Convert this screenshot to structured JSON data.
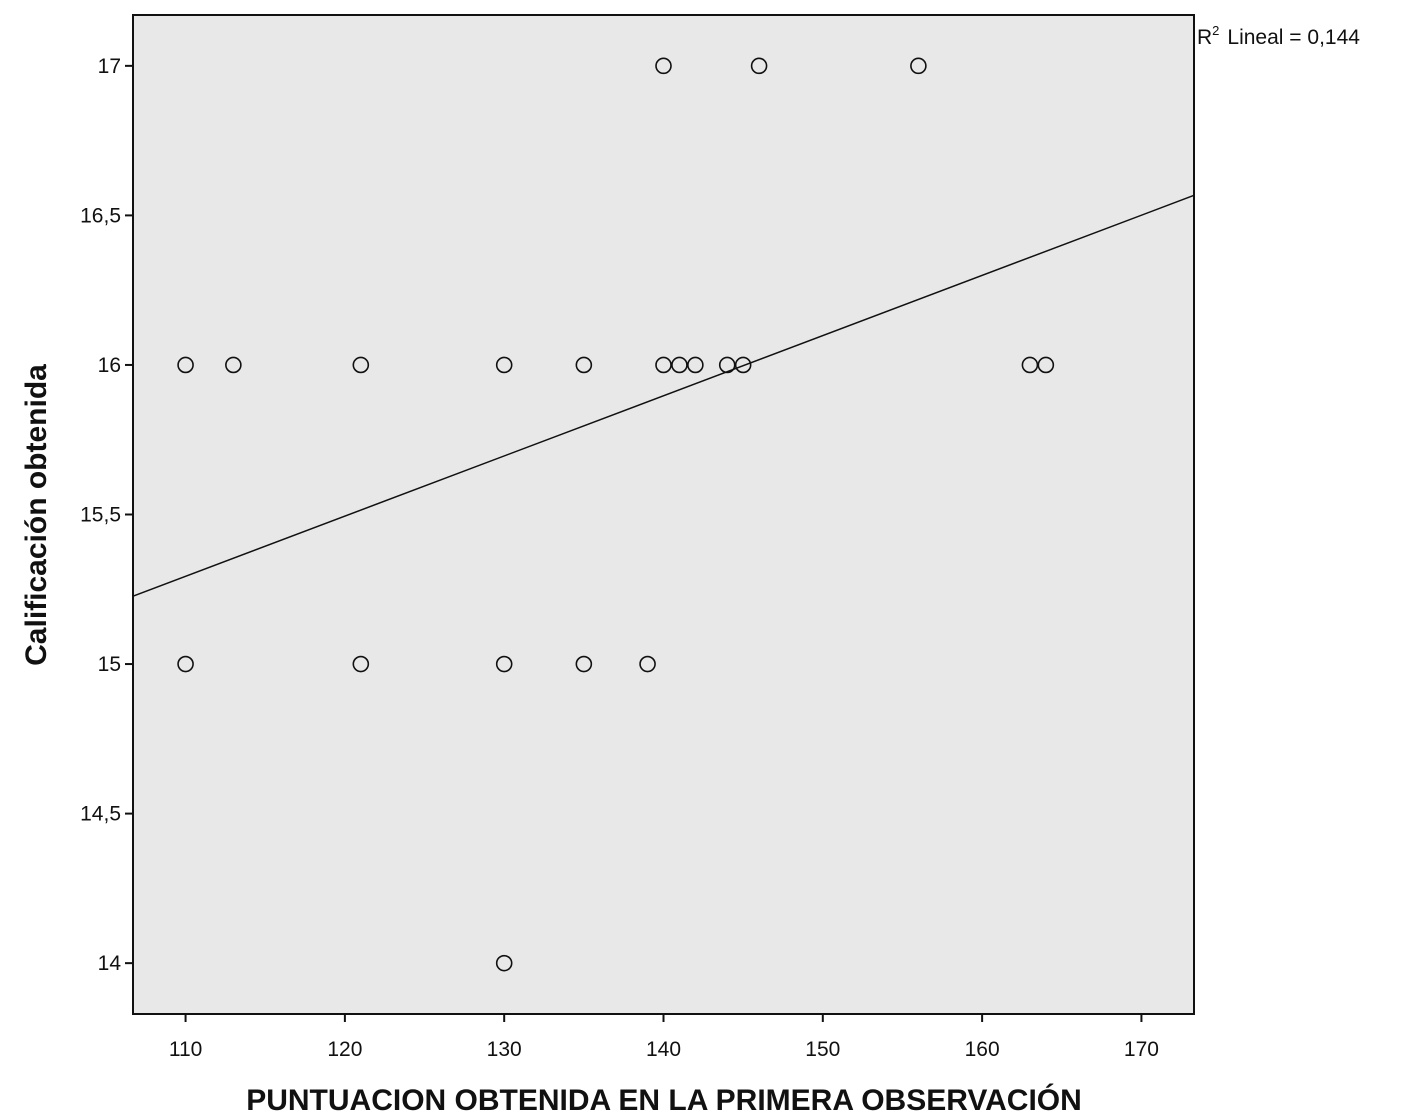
{
  "chart_data": {
    "type": "scatter",
    "title": "",
    "xlabel": "PUNTUACION OBTENIDA EN LA PRIMERA OBSERVACIÓN",
    "ylabel": "Calificación obtenida",
    "xlim": [
      106.7,
      173.3
    ],
    "ylim": [
      13.83,
      17.17
    ],
    "xticks": [
      110,
      120,
      130,
      140,
      150,
      160,
      170
    ],
    "xtick_labels": [
      "110",
      "120",
      "130",
      "140",
      "150",
      "160",
      "170"
    ],
    "yticks": [
      14,
      14.5,
      15,
      15.5,
      16,
      16.5,
      17
    ],
    "ytick_labels": [
      "14",
      "14,5",
      "15",
      "15,5",
      "16",
      "16,5",
      "17"
    ],
    "grid": false,
    "background": "#e8e8e8",
    "points": [
      {
        "x": 140,
        "y": 17
      },
      {
        "x": 146,
        "y": 17
      },
      {
        "x": 156,
        "y": 17
      },
      {
        "x": 110,
        "y": 16
      },
      {
        "x": 113,
        "y": 16
      },
      {
        "x": 121,
        "y": 16
      },
      {
        "x": 130,
        "y": 16
      },
      {
        "x": 135,
        "y": 16
      },
      {
        "x": 140,
        "y": 16
      },
      {
        "x": 141,
        "y": 16
      },
      {
        "x": 142,
        "y": 16
      },
      {
        "x": 144,
        "y": 16
      },
      {
        "x": 145,
        "y": 16
      },
      {
        "x": 163,
        "y": 16
      },
      {
        "x": 164,
        "y": 16
      },
      {
        "x": 110,
        "y": 15
      },
      {
        "x": 121,
        "y": 15
      },
      {
        "x": 130,
        "y": 15
      },
      {
        "x": 135,
        "y": 15
      },
      {
        "x": 139,
        "y": 15
      },
      {
        "x": 130,
        "y": 14
      }
    ],
    "fit_line": {
      "type": "linear",
      "x": [
        106.7,
        173.3
      ],
      "y": [
        15.227,
        16.567
      ]
    },
    "annotation": {
      "prefix": "R",
      "sup": "2",
      "text": "Lineal = 0,144",
      "placement": "top-right"
    }
  }
}
